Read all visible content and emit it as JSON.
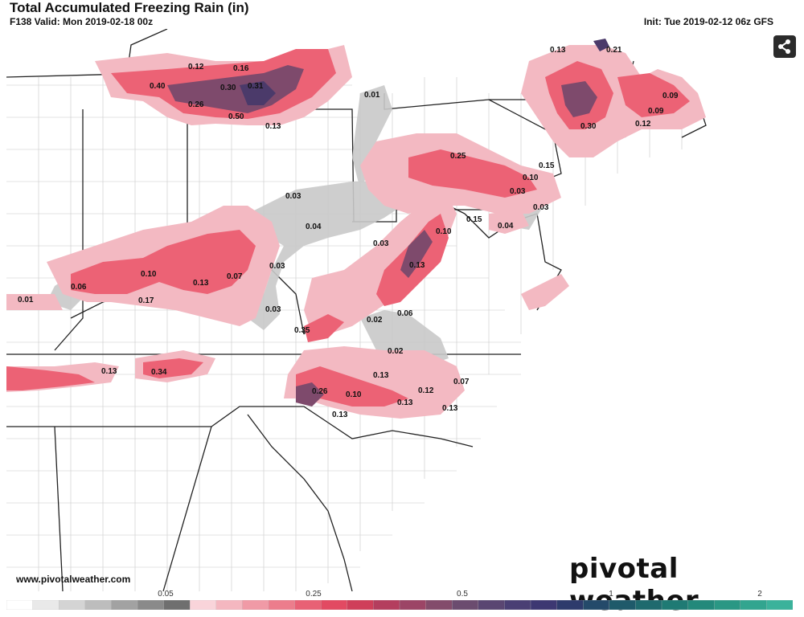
{
  "header": {
    "title": "Total Accumulated Freezing Rain (in)",
    "valid": "F138 Valid: Mon 2019-02-18 00z",
    "init": "Init: Tue 2019-02-12 06z GFS"
  },
  "footer": {
    "website": "www.pivotalweather.com",
    "brand": "pivotal weather"
  },
  "icons": {
    "share": "share-icon"
  },
  "colors": {
    "light_gray": "#d8d8d8",
    "gray": "#a9a9a9",
    "pink_light": "#f4c4cc",
    "pink": "#ef8f9b",
    "red": "#ec5266",
    "purple": "#8c4a6a",
    "dark_purple": "#4f3869"
  },
  "legend": {
    "ticks": [
      "0.05",
      "0.25",
      "0.5",
      "1",
      "2"
    ],
    "colors": [
      "#ffffff",
      "#e9e9e9",
      "#d4d4d4",
      "#bdbdbd",
      "#a2a2a2",
      "#8a8a8a",
      "#6f6f6f",
      "#f9d4da",
      "#f4b7c0",
      "#f09aa6",
      "#ec7d8c",
      "#e86175",
      "#e24a62",
      "#cf3f5a",
      "#b43e5e",
      "#9c4566",
      "#834c6b",
      "#6b4c6f",
      "#5a4672",
      "#4a3f74",
      "#3d3872",
      "#2e3b6c",
      "#244a6a",
      "#1f5a6a",
      "#1f6a6e",
      "#1f7a74",
      "#23897b",
      "#2a9784",
      "#32a58f",
      "#3bb29b"
    ]
  },
  "values": [
    "0.12",
    "0.16",
    "0.40",
    "0.30",
    "0.31",
    "0.26",
    "0.50",
    "0.13",
    "0.13",
    "0.21",
    "0.09",
    "0.09",
    "0.30",
    "0.12",
    "0.01",
    "0.25",
    "0.15",
    "0.10",
    "0.03",
    "0.03",
    "0.03",
    "0.04",
    "0.15",
    "0.10",
    "0.04",
    "0.03",
    "0.13",
    "0.03",
    "0.10",
    "0.13",
    "0.07",
    "0.06",
    "0.01",
    "0.17",
    "0.03",
    "0.35",
    "0.02",
    "0.06",
    "0.02",
    "0.13",
    "0.34",
    "0.13",
    "0.07",
    "0.12",
    "0.26",
    "0.10",
    "0.13",
    "0.13",
    "0.13"
  ]
}
